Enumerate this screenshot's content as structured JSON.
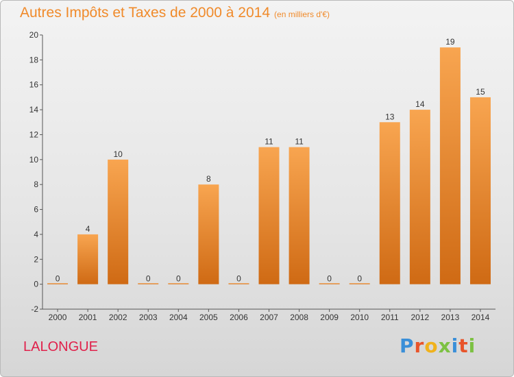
{
  "chart_data": {
    "type": "bar",
    "title": "Autres Impôts et Taxes de 2000 à 2014",
    "subtitle": "(en milliers d'€)",
    "categories": [
      "2000",
      "2001",
      "2002",
      "2003",
      "2004",
      "2005",
      "2006",
      "2007",
      "2008",
      "2009",
      "2010",
      "2011",
      "2012",
      "2013",
      "2014"
    ],
    "values": [
      0,
      4,
      10,
      0,
      0,
      8,
      0,
      11,
      11,
      0,
      0,
      13,
      14,
      19,
      15
    ],
    "ylim": [
      -2,
      20
    ],
    "yticks": [
      -2,
      0,
      2,
      4,
      6,
      8,
      10,
      12,
      14,
      16,
      18,
      20
    ],
    "bar_color": "#f08a2a",
    "grid": false
  },
  "footer": {
    "town": "LALONGUE",
    "logo": {
      "letters": [
        "P",
        "r",
        "o",
        "x",
        "i",
        "t",
        "i"
      ],
      "colors": [
        "#3a8fd8",
        "#e8542a",
        "#f0b21c",
        "#7cc142",
        "#3a8fd8",
        "#e8542a",
        "#7cc142"
      ]
    }
  }
}
